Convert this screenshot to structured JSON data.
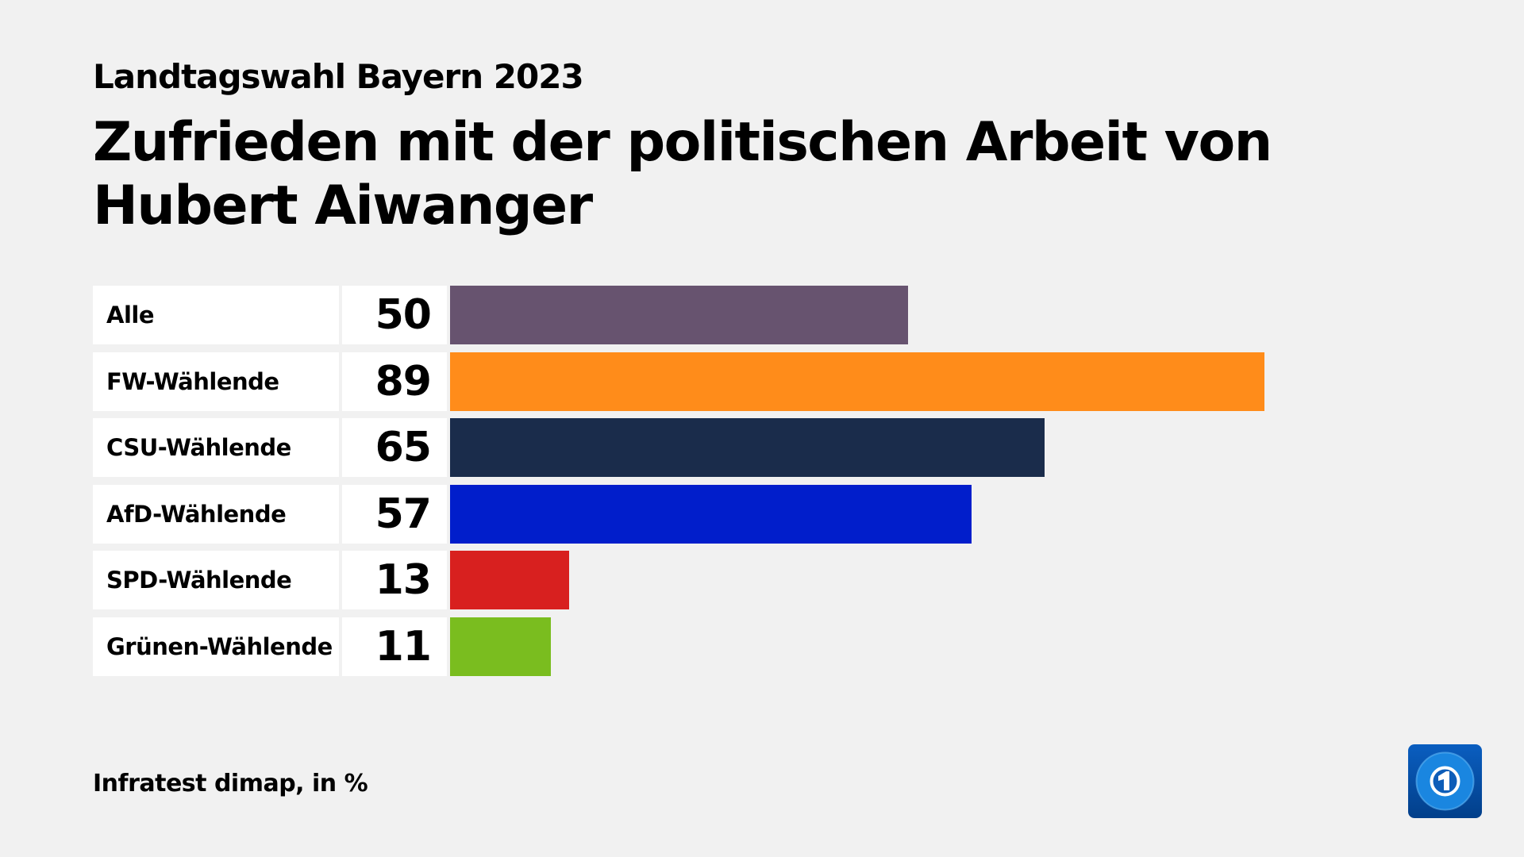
{
  "subtitle": "Landtagswahl Bayern 2023",
  "title": "Zufrieden mit der politischen Arbeit von Hubert Aiwanger",
  "footer": "Infratest dimap, in %",
  "logo": "tagesschau-logo",
  "chart_data": {
    "type": "bar",
    "orientation": "horizontal",
    "title": "Zufrieden mit der politischen Arbeit von Hubert Aiwanger",
    "subtitle": "Landtagswahl Bayern 2023",
    "unit": "%",
    "xlim": [
      0,
      100
    ],
    "grid": false,
    "categories": [
      "Alle",
      "FW-Wählende",
      "CSU-Wählende",
      "AfD-Wählende",
      "SPD-Wählende",
      "Grünen-Wählende"
    ],
    "values": [
      50,
      89,
      65,
      57,
      13,
      11
    ],
    "colors": [
      "#67536f",
      "#ff8c1a",
      "#1a2c4b",
      "#011ecb",
      "#d8201f",
      "#7abd1f"
    ]
  }
}
